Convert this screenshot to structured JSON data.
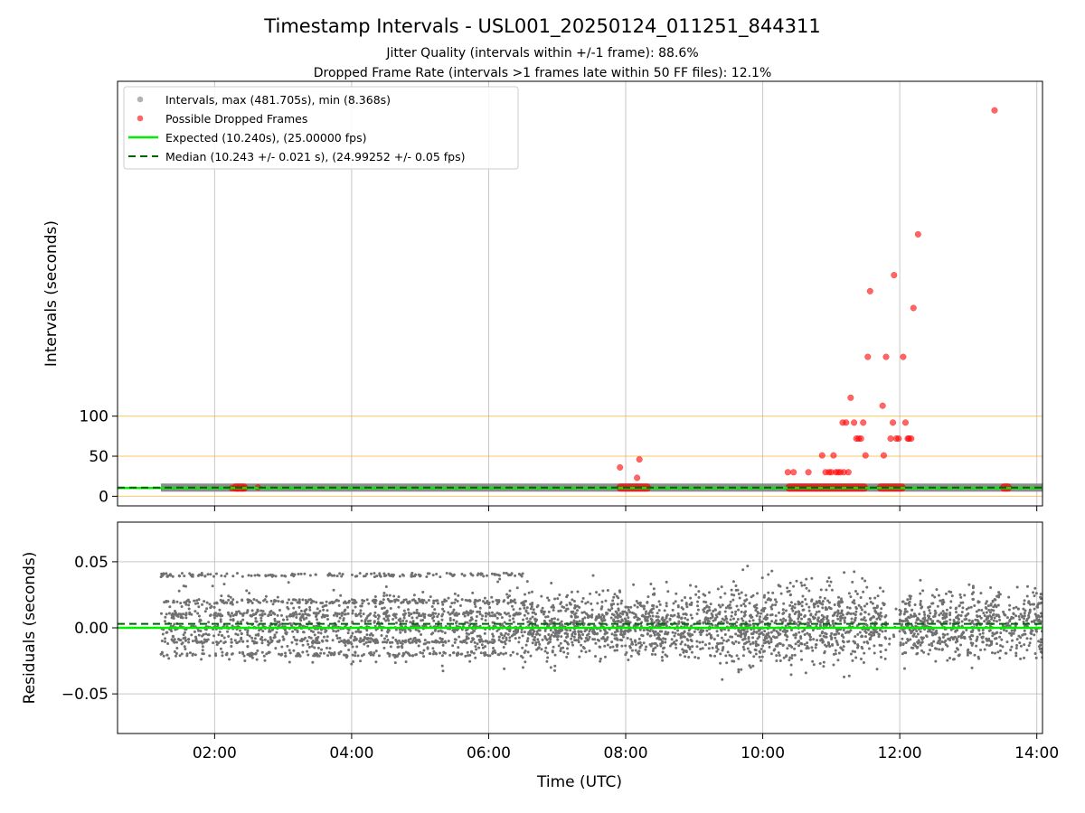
{
  "figure": {
    "title": "Timestamp Intervals - USL001_20250124_011251_844311",
    "subtitle_1": "Jitter Quality (intervals within +/-1 frame): 88.6%",
    "subtitle_2": "Dropped Frame Rate (intervals >1 frames late within 50 FF files): 12.1%",
    "xlabel": "Time (UTC)"
  },
  "colors": {
    "intervals": "#808080",
    "dropped": "#ff0000",
    "expected": "#00ee00",
    "median": "#006400",
    "threshold_lines": "#ffa500",
    "grid": "#b0b0b0",
    "residuals": "#707070"
  },
  "chart_data": [
    {
      "type": "scatter",
      "name": "intervals",
      "ylabel": "Intervals (seconds)",
      "xlim": [
        "00:35",
        "14:05"
      ],
      "ylim": [
        -12,
        518
      ],
      "x_ticks": [
        "02:00",
        "04:00",
        "06:00",
        "08:00",
        "10:00",
        "12:00",
        "14:00"
      ],
      "y_ticks": [
        "0",
        "50",
        "100"
      ],
      "y_tick_values": [
        0,
        50,
        100
      ],
      "horizontal_guides": [
        0,
        50,
        100
      ],
      "grid": "vertical",
      "legend_position": "top-left",
      "legend": [
        "Intervals, max (481.705s), min (8.368s)",
        "Possible Dropped Frames",
        "Expected (10.240s), (25.00000 fps)",
        "Median (10.243 +/- 0.021 s), (24.99252 +/- 0.05 fps)"
      ],
      "expected_value": 10.24,
      "median_value": 10.243,
      "intervals_range": [
        "01:13",
        "14:05"
      ],
      "dropped_segments": [
        {
          "x": [
            "02:15",
            "02:29"
          ],
          "y": 10.24
        },
        {
          "x": [
            "07:52",
            "08:22"
          ],
          "y": 10.24
        },
        {
          "x": [
            "10:20",
            "11:32"
          ],
          "y": 10.24
        },
        {
          "x": [
            "11:40",
            "12:05"
          ],
          "y": 10.24
        },
        {
          "x": [
            "13:28",
            "13:38"
          ],
          "y": 10.24
        }
      ],
      "dropped_points": [
        {
          "x": "02:15",
          "y": 10
        },
        {
          "x": "02:20",
          "y": 10
        },
        {
          "x": "02:25",
          "y": 10
        },
        {
          "x": "02:38",
          "y": 11
        },
        {
          "x": "07:55",
          "y": 36
        },
        {
          "x": "08:10",
          "y": 23
        },
        {
          "x": "08:12",
          "y": 46
        },
        {
          "x": "10:22",
          "y": 30
        },
        {
          "x": "10:27",
          "y": 30
        },
        {
          "x": "10:40",
          "y": 30
        },
        {
          "x": "10:52",
          "y": 51
        },
        {
          "x": "10:55",
          "y": 30
        },
        {
          "x": "10:58",
          "y": 30
        },
        {
          "x": "11:00",
          "y": 30
        },
        {
          "x": "11:02",
          "y": 51
        },
        {
          "x": "11:04",
          "y": 30
        },
        {
          "x": "11:06",
          "y": 30
        },
        {
          "x": "11:08",
          "y": 30
        },
        {
          "x": "11:10",
          "y": 92
        },
        {
          "x": "11:11",
          "y": 30
        },
        {
          "x": "11:13",
          "y": 92
        },
        {
          "x": "11:15",
          "y": 30
        },
        {
          "x": "11:17",
          "y": 123
        },
        {
          "x": "11:20",
          "y": 92
        },
        {
          "x": "11:22",
          "y": 72
        },
        {
          "x": "11:24",
          "y": 72
        },
        {
          "x": "11:26",
          "y": 72
        },
        {
          "x": "11:28",
          "y": 92
        },
        {
          "x": "11:30",
          "y": 51
        },
        {
          "x": "11:32",
          "y": 174
        },
        {
          "x": "11:34",
          "y": 256
        },
        {
          "x": "11:45",
          "y": 113
        },
        {
          "x": "11:48",
          "y": 174
        },
        {
          "x": "11:46",
          "y": 51
        },
        {
          "x": "11:52",
          "y": 72
        },
        {
          "x": "11:54",
          "y": 92
        },
        {
          "x": "11:55",
          "y": 276
        },
        {
          "x": "11:57",
          "y": 72
        },
        {
          "x": "11:59",
          "y": 72
        },
        {
          "x": "12:03",
          "y": 174
        },
        {
          "x": "12:05",
          "y": 92
        },
        {
          "x": "12:07",
          "y": 72
        },
        {
          "x": "12:08",
          "y": 72
        },
        {
          "x": "12:10",
          "y": 72
        },
        {
          "x": "12:12",
          "y": 235
        },
        {
          "x": "12:16",
          "y": 327
        },
        {
          "x": "13:23",
          "y": 481.705
        }
      ]
    },
    {
      "type": "scatter",
      "name": "residuals",
      "ylabel": "Residuals (seconds)",
      "xlim": [
        "00:35",
        "14:05"
      ],
      "ylim": [
        -0.08,
        0.08
      ],
      "x_ticks": [
        "02:00",
        "04:00",
        "06:00",
        "08:00",
        "10:00",
        "12:00",
        "14:00"
      ],
      "y_ticks": [
        "0.05",
        "0.00",
        "−0.05"
      ],
      "y_tick_values": [
        0.05,
        0.0,
        -0.05
      ],
      "grid": "both",
      "expected_value": 0.0,
      "median_value": 0.003,
      "residual_range": [
        "01:13",
        "14:05"
      ],
      "approx_spread": 0.025
    }
  ]
}
